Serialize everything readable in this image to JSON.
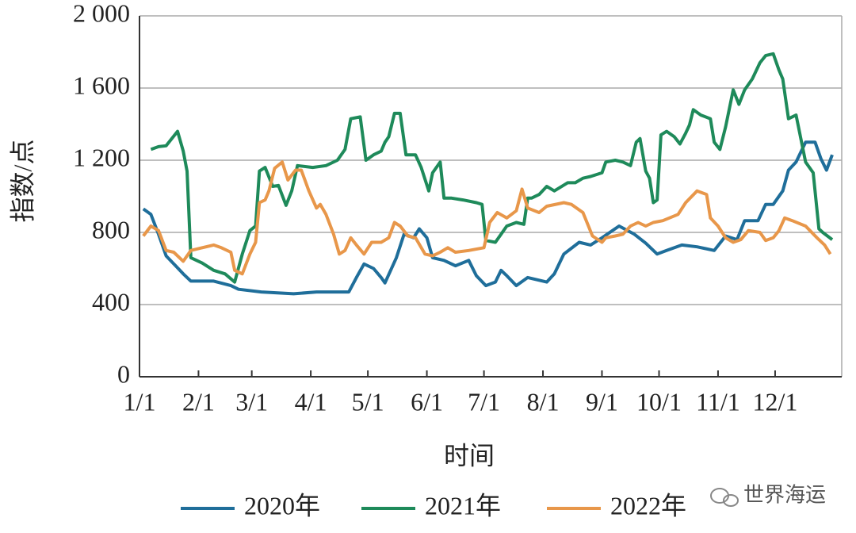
{
  "chart_data": {
    "type": "line",
    "ylabel": "指数/点",
    "xlabel": "时间",
    "watermark": "世界海运",
    "xlim": [
      1,
      370
    ],
    "ylim": [
      0,
      2000
    ],
    "xticks": [
      {
        "value": 1,
        "label": "1/1"
      },
      {
        "value": 32,
        "label": "2/1"
      },
      {
        "value": 60,
        "label": "3/1"
      },
      {
        "value": 91,
        "label": "4/1"
      },
      {
        "value": 121,
        "label": "5/1"
      },
      {
        "value": 152,
        "label": "6/1"
      },
      {
        "value": 182,
        "label": "7/1"
      },
      {
        "value": 213,
        "label": "8/1"
      },
      {
        "value": 244,
        "label": "9/1"
      },
      {
        "value": 274,
        "label": "10/1"
      },
      {
        "value": 305,
        "label": "11/1"
      },
      {
        "value": 335,
        "label": "12/1"
      }
    ],
    "yticks": [
      0,
      400,
      800,
      {
        "value": 1200,
        "label": "1 200"
      },
      {
        "value": 1600,
        "label": "1 600"
      },
      {
        "value": 2000,
        "label": "2 000"
      }
    ],
    "grid": true,
    "series": [
      {
        "name": "2020年",
        "color": "#1f6e9a",
        "x": [
          3,
          7,
          11,
          15,
          20,
          24,
          28,
          40,
          49,
          53,
          65,
          82,
          94,
          103,
          111,
          115,
          119,
          124,
          128,
          130,
          136,
          140,
          145,
          148,
          152,
          155,
          161,
          167,
          174,
          178,
          183,
          188,
          191,
          194,
          199,
          205,
          215,
          219,
          224,
          232,
          238,
          244,
          253,
          261,
          267,
          273,
          278,
          286,
          294,
          303,
          309,
          315,
          319,
          326,
          330,
          334,
          339,
          342,
          346,
          351,
          356,
          359,
          362,
          365
        ],
        "values": [
          930,
          900,
          790,
          670,
          615,
          570,
          530,
          530,
          505,
          485,
          470,
          460,
          470,
          470,
          470,
          550,
          625,
          600,
          550,
          520,
          660,
          790,
          770,
          820,
          770,
          660,
          645,
          615,
          645,
          560,
          505,
          525,
          590,
          560,
          505,
          550,
          525,
          570,
          680,
          745,
          730,
          770,
          835,
          790,
          740,
          680,
          700,
          730,
          720,
          700,
          780,
          760,
          865,
          865,
          955,
          955,
          1030,
          1145,
          1190,
          1300,
          1300,
          1210,
          1145,
          1230
        ]
      },
      {
        "name": "2021年",
        "color": "#1e8a5a",
        "x": [
          7,
          11,
          15,
          21,
          24,
          26,
          28,
          34,
          40,
          46,
          51,
          55,
          59,
          62,
          64,
          67,
          71,
          74,
          78,
          81,
          84,
          92,
          99,
          105,
          109,
          112,
          117,
          120,
          124,
          128,
          130,
          132,
          135,
          138,
          141,
          146,
          149,
          153,
          155,
          159,
          161,
          165,
          171,
          178,
          181,
          183,
          188,
          194,
          199,
          203,
          205,
          207,
          211,
          215,
          219,
          226,
          230,
          234,
          238,
          244,
          246,
          251,
          255,
          259,
          262,
          264,
          267,
          269,
          271,
          273,
          275,
          278,
          282,
          285,
          288,
          290,
          292,
          296,
          301,
          303,
          306,
          309,
          313,
          316,
          319,
          323,
          327,
          330,
          334,
          337,
          339,
          342,
          346,
          351,
          355,
          358,
          360,
          365
        ],
        "values": [
          1260,
          1275,
          1280,
          1360,
          1250,
          1140,
          660,
          630,
          590,
          570,
          525,
          680,
          810,
          835,
          1140,
          1160,
          1055,
          1060,
          950,
          1030,
          1170,
          1160,
          1170,
          1200,
          1260,
          1430,
          1440,
          1200,
          1230,
          1250,
          1300,
          1330,
          1460,
          1460,
          1230,
          1230,
          1160,
          1030,
          1130,
          1190,
          990,
          990,
          980,
          965,
          955,
          755,
          745,
          835,
          855,
          845,
          990,
          990,
          1010,
          1055,
          1030,
          1075,
          1075,
          1100,
          1110,
          1130,
          1190,
          1200,
          1190,
          1170,
          1300,
          1320,
          1140,
          1100,
          965,
          980,
          1340,
          1360,
          1330,
          1290,
          1350,
          1395,
          1480,
          1450,
          1430,
          1300,
          1260,
          1385,
          1590,
          1510,
          1590,
          1650,
          1740,
          1780,
          1790,
          1700,
          1650,
          1430,
          1450,
          1190,
          1130,
          820,
          800,
          760
        ]
      },
      {
        "name": "2022年",
        "color": "#e8974a",
        "x": [
          3,
          7,
          11,
          15,
          19,
          24,
          28,
          34,
          40,
          44,
          49,
          51,
          55,
          59,
          62,
          64,
          67,
          69,
          72,
          76,
          79,
          83,
          86,
          90,
          94,
          96,
          99,
          103,
          106,
          109,
          112,
          115,
          119,
          123,
          128,
          132,
          135,
          138,
          142,
          146,
          151,
          155,
          159,
          163,
          167,
          174,
          182,
          185,
          189,
          194,
          199,
          202,
          205,
          211,
          215,
          224,
          228,
          234,
          239,
          244,
          246,
          251,
          255,
          259,
          263,
          267,
          271,
          276,
          284,
          288,
          294,
          299,
          301,
          305,
          309,
          313,
          317,
          321,
          327,
          330,
          334,
          337,
          340,
          344,
          351,
          357,
          361,
          364
        ],
        "values": [
          780,
          835,
          810,
          700,
          690,
          640,
          700,
          715,
          730,
          715,
          690,
          590,
          570,
          680,
          745,
          965,
          980,
          1030,
          1155,
          1190,
          1090,
          1145,
          1145,
          1030,
          935,
          955,
          900,
          790,
          680,
          700,
          770,
          730,
          680,
          745,
          745,
          770,
          855,
          835,
          780,
          770,
          680,
          670,
          690,
          715,
          690,
          700,
          715,
          855,
          910,
          880,
          920,
          1040,
          935,
          910,
          945,
          965,
          955,
          910,
          780,
          745,
          770,
          780,
          790,
          835,
          855,
          835,
          855,
          865,
          900,
          965,
          1030,
          1010,
          880,
          835,
          770,
          745,
          760,
          810,
          800,
          755,
          770,
          810,
          880,
          865,
          835,
          770,
          730,
          680
        ]
      }
    ]
  }
}
